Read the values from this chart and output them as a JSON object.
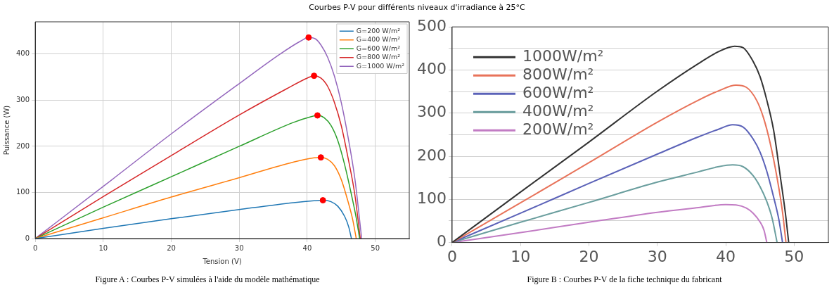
{
  "chart_data": [
    {
      "type": "line",
      "title": "Courbes P-V pour différents niveaux d'irradiance à 25°C",
      "xlabel": "Tension (V)",
      "ylabel": "Puissance (W)",
      "xlim": [
        0,
        55
      ],
      "ylim": [
        0,
        470
      ],
      "xticks": [
        0,
        10,
        20,
        30,
        40,
        50
      ],
      "yticks": [
        0,
        100,
        200,
        300,
        400
      ],
      "grid": true,
      "legend": "top right",
      "line_style": "solid",
      "annotations": [
        "Figure A : Courbes P-V simulées à l'aide du modèle mathématique"
      ],
      "series": [
        {
          "name": "G=200 W/m²",
          "color": "#1f77b4",
          "x": [
            0,
            10,
            20,
            30,
            38,
            41,
            42.3,
            43.5,
            44.5,
            45.5,
            46.1,
            46.5
          ],
          "values": [
            0,
            22,
            43,
            63,
            78,
            82,
            83,
            80,
            70,
            48,
            25,
            0
          ]
        },
        {
          "name": "G=400 W/m²",
          "color": "#ff7f0e",
          "x": [
            0,
            10,
            20,
            30,
            38,
            41,
            42,
            43,
            44,
            45,
            46,
            46.7,
            47.2
          ],
          "values": [
            0,
            45,
            90,
            132,
            166,
            175,
            176,
            172,
            158,
            128,
            80,
            40,
            0
          ]
        },
        {
          "name": "G=600 W/m²",
          "color": "#2ca02c",
          "x": [
            0,
            10,
            20,
            30,
            38,
            40.5,
            41.5,
            42.5,
            43.5,
            44.5,
            45.5,
            46.5,
            47.2,
            47.7
          ],
          "values": [
            0,
            68,
            134,
            200,
            252,
            264,
            267,
            262,
            245,
            212,
            160,
            95,
            45,
            0
          ]
        },
        {
          "name": "G=800 W/m²",
          "color": "#d62728",
          "x": [
            0,
            10,
            20,
            30,
            37,
            40,
            41,
            42,
            43,
            44,
            45,
            46,
            47,
            47.8
          ],
          "values": [
            0,
            91,
            180,
            268,
            325,
            348,
            353,
            348,
            330,
            295,
            245,
            175,
            95,
            0
          ]
        },
        {
          "name": "G=1000 W/m²",
          "color": "#9467bd",
          "x": [
            0,
            10,
            20,
            30,
            36,
            39,
            40.2,
            41.2,
            42,
            43,
            44,
            45,
            46,
            47,
            48
          ],
          "values": [
            0,
            113,
            227,
            336,
            400,
            428,
            436,
            433,
            420,
            393,
            352,
            295,
            220,
            130,
            0
          ]
        },
        {
          "type": "scatter",
          "marker": "circle",
          "color": "#ff0000",
          "x": [
            42.3,
            42,
            41.5,
            41,
            40.2
          ],
          "values": [
            83,
            176,
            267,
            353,
            436
          ]
        }
      ]
    },
    {
      "type": "line",
      "xlim": [
        0,
        55
      ],
      "ylim": [
        0,
        500
      ],
      "xticks": [
        0,
        10,
        20,
        30,
        40,
        50
      ],
      "yticks": [
        0,
        {
          "value": 50,
          "label": null
        },
        100,
        {
          "value": 150,
          "label": null
        },
        200,
        {
          "value": 250,
          "label": null
        },
        300,
        {
          "value": 350,
          "label": null
        },
        400,
        {
          "value": 450,
          "label": null
        },
        500
      ],
      "grid": "y",
      "legend": "top left",
      "line_style": "solid",
      "annotations": [
        "Figure B : Courbes P-V de la fiche technique du fabricant"
      ],
      "series": [
        {
          "name": "1000W/m²",
          "color": "#333333",
          "x": [
            0,
            10,
            20,
            30,
            36,
            39,
            41.3,
            42.5,
            44,
            45,
            46,
            47,
            48,
            48.7,
            49.2
          ],
          "values": [
            0,
            117,
            233,
            351,
            415,
            443,
            455,
            452,
            420,
            385,
            330,
            260,
            150,
            70,
            0
          ]
        },
        {
          "name": "800W/m²",
          "color": "#e8735a",
          "x": [
            0,
            10,
            20,
            30,
            36,
            39,
            41.5,
            43,
            44.5,
            45.5,
            46.5,
            47.5,
            48.3,
            48.8
          ],
          "values": [
            0,
            92,
            185,
            279,
            330,
            352,
            365,
            360,
            330,
            290,
            230,
            150,
            70,
            0
          ]
        },
        {
          "name": "600W/m²",
          "color": "#5b62b8",
          "x": [
            0,
            10,
            20,
            30,
            36,
            39,
            41,
            42.5,
            44,
            45,
            46,
            47,
            47.8,
            48.3
          ],
          "values": [
            0,
            68,
            137,
            205,
            245,
            263,
            273,
            268,
            240,
            210,
            165,
            105,
            50,
            0
          ]
        },
        {
          "name": "400W/m²",
          "color": "#6a9e9e",
          "x": [
            0,
            10,
            20,
            30,
            36,
            39,
            41,
            42.5,
            44,
            45,
            46,
            46.8,
            47.5
          ],
          "values": [
            0,
            47,
            93,
            140,
            164,
            176,
            180,
            176,
            155,
            130,
            95,
            55,
            0
          ]
        },
        {
          "name": "200W/m²",
          "color": "#c27cc4",
          "x": [
            0,
            10,
            20,
            30,
            36,
            40,
            41.5,
            43,
            44,
            45,
            45.6,
            46
          ],
          "values": [
            0,
            23,
            47,
            70,
            81,
            88,
            87,
            80,
            68,
            48,
            28,
            0
          ]
        }
      ]
    }
  ]
}
